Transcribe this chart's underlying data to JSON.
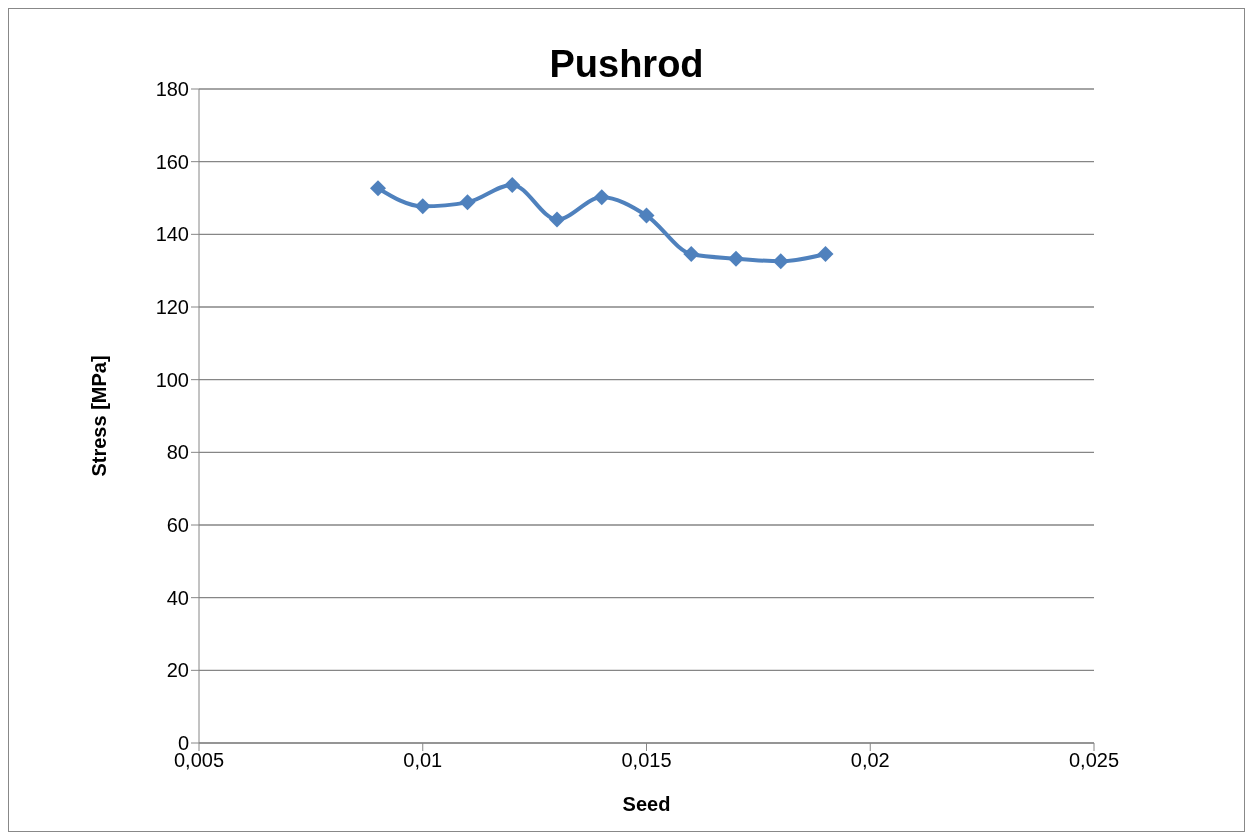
{
  "chart_data": {
    "type": "line",
    "title": "Pushrod",
    "xlabel": "Seed",
    "ylabel": "Stress [MPa]",
    "x": [
      0.009,
      0.01,
      0.011,
      0.012,
      0.013,
      0.014,
      0.015,
      0.016,
      0.017,
      0.018,
      0.019
    ],
    "series": [
      {
        "color": "#4f81bd",
        "values": [
          152.7,
          147.7,
          148.8,
          153.6,
          144.1,
          150.2,
          145.2,
          134.6,
          133.3,
          132.6,
          134.6
        ]
      }
    ],
    "xlim": [
      0.005,
      0.025
    ],
    "xticks": [
      {
        "value": 0.005,
        "label": "0,005"
      },
      {
        "value": 0.01,
        "label": "0,01"
      },
      {
        "value": 0.015,
        "label": "0,015"
      },
      {
        "value": 0.02,
        "label": "0,02"
      },
      {
        "value": 0.025,
        "label": "0,025"
      }
    ],
    "ylim": [
      0,
      180
    ],
    "yticks": [
      0,
      20,
      40,
      60,
      80,
      100,
      120,
      140,
      160,
      180
    ],
    "grid": "y",
    "marker": "diamond",
    "legend": false
  }
}
